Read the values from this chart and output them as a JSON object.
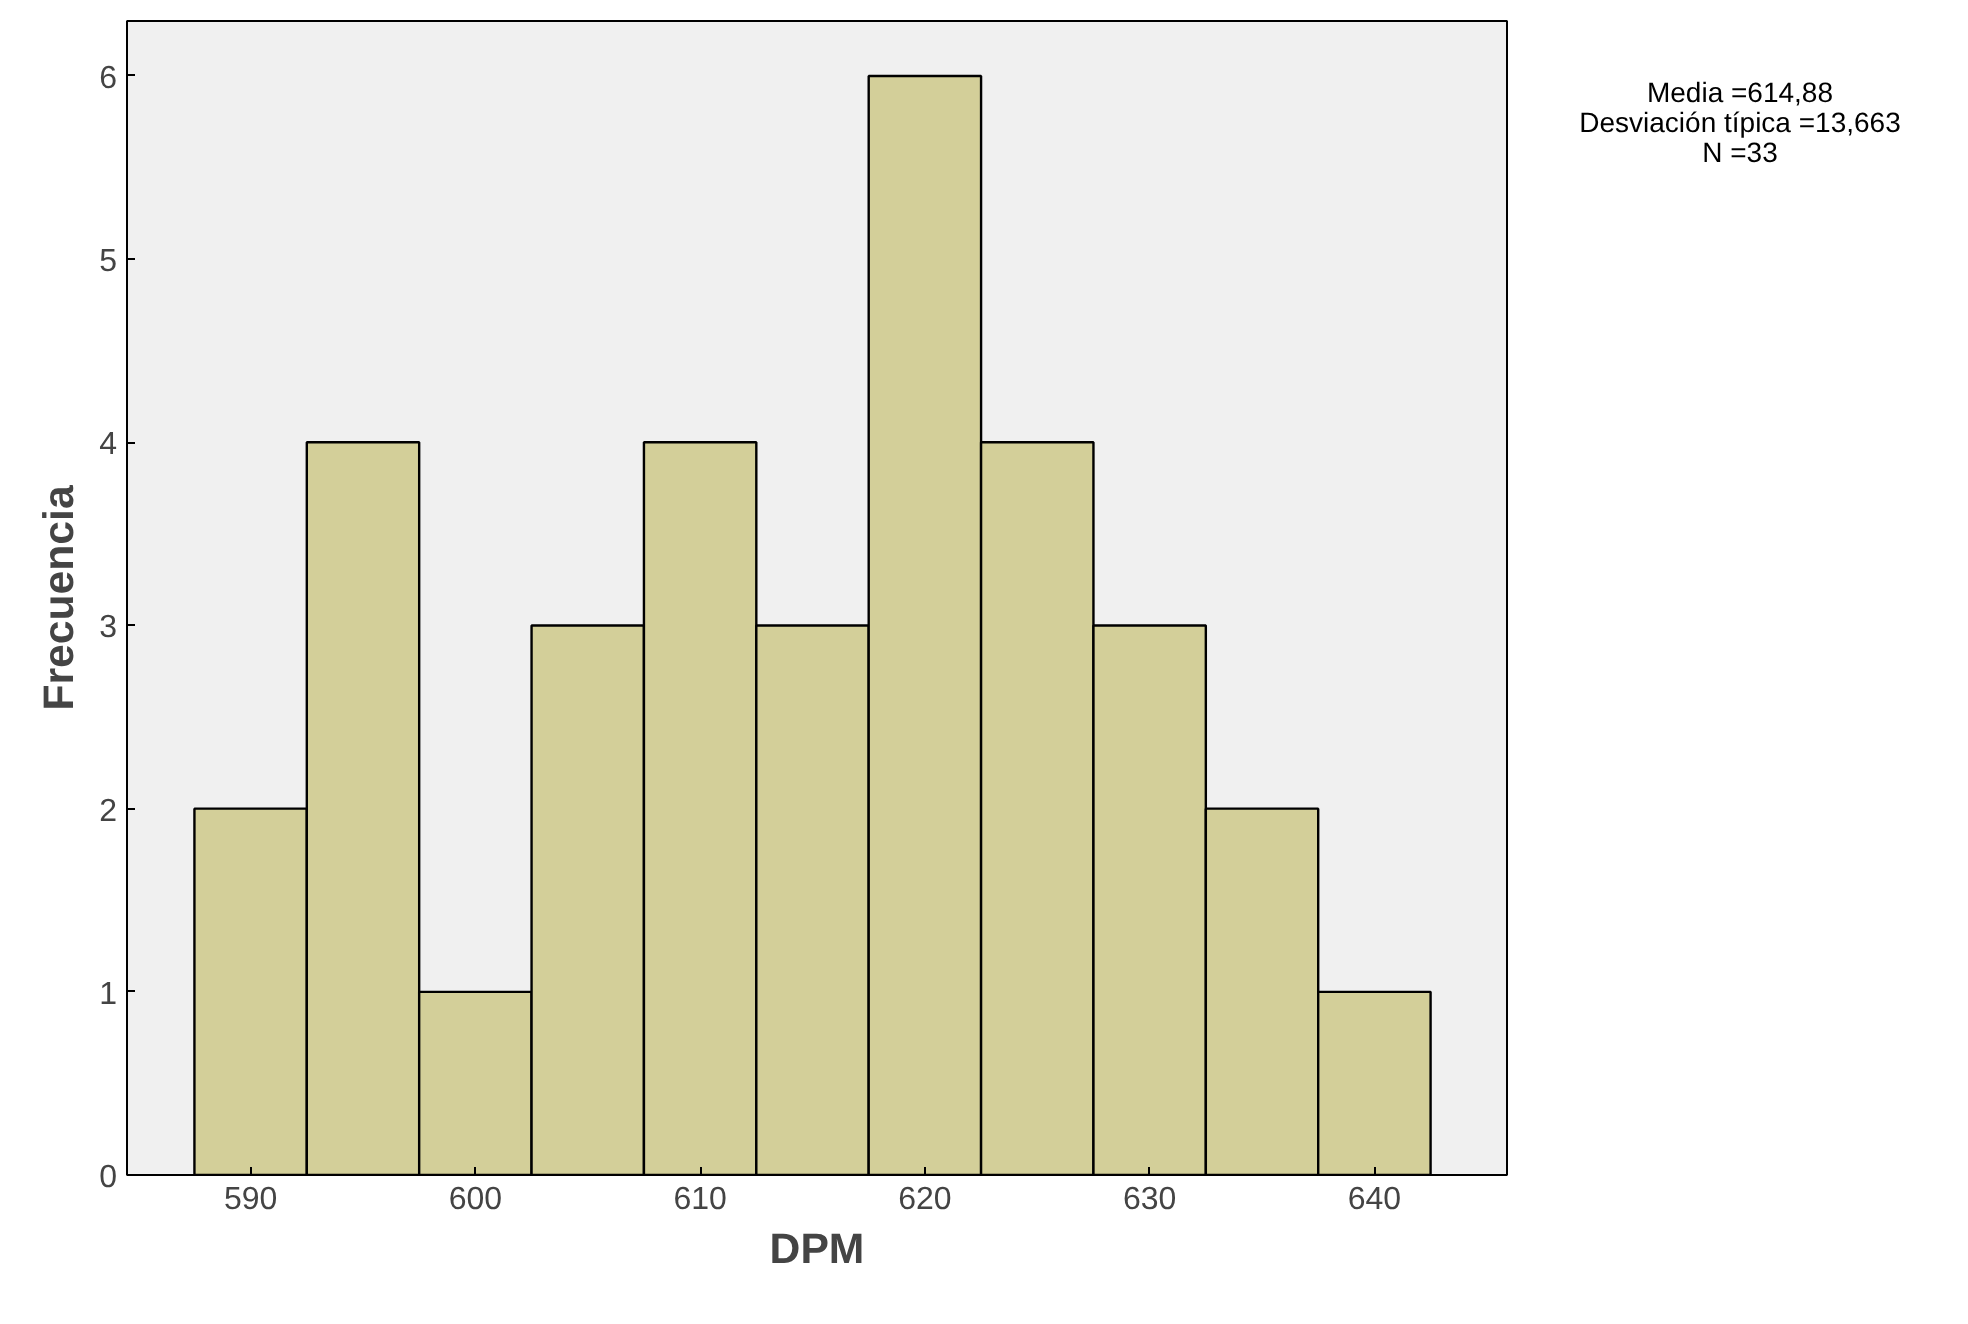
{
  "chart_data": {
    "type": "histogram",
    "xlabel": "DPM",
    "ylabel": "Frecuencia",
    "bins": [
      587.5,
      592.5,
      597.5,
      602.5,
      607.5,
      612.5,
      617.5,
      622.5,
      627.5,
      632.5,
      637.5,
      642.5
    ],
    "values": [
      2,
      4,
      1,
      3,
      4,
      3,
      6,
      4,
      3,
      2,
      1
    ],
    "color": "#d3cf99",
    "xlim": [
      584.5,
      645.9
    ],
    "xticks": [
      590,
      600,
      610,
      620,
      630,
      640
    ],
    "ylim": [
      0,
      6.3
    ],
    "yticks": [
      0,
      1,
      2,
      3,
      4,
      5,
      6
    ],
    "grid": false,
    "annotations": [
      "Media =614,88",
      "Desviación típica =13,663",
      "N =33"
    ]
  }
}
